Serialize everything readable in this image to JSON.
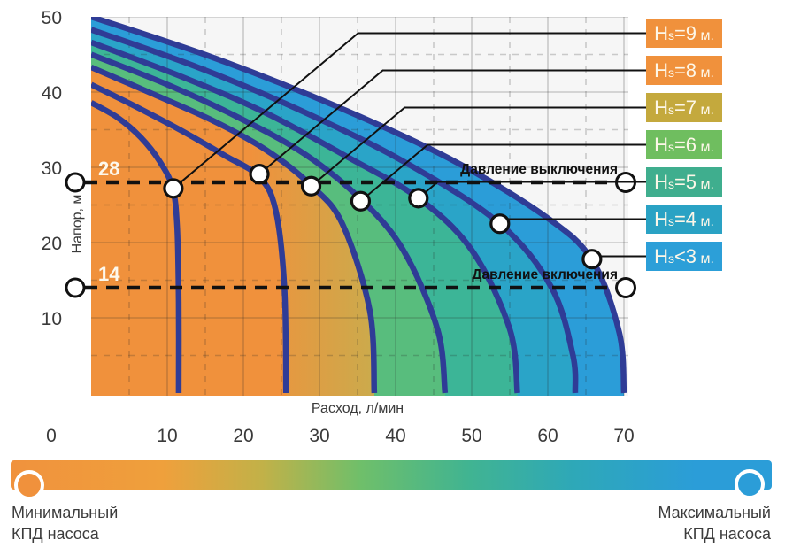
{
  "chart_data": {
    "type": "line",
    "title": "",
    "xlabel": "Расход, л/мин",
    "ylabel": "Напор, м",
    "xlim": [
      0,
      70
    ],
    "ylim": [
      0,
      50
    ],
    "x_ticks": [
      0,
      10,
      20,
      30,
      40,
      50,
      60,
      70
    ],
    "y_ticks": [
      50,
      40,
      30,
      20,
      10
    ],
    "grid": {
      "major_step": 10,
      "minor_step": 5,
      "minor_style": "dashed",
      "major_style": "solid"
    },
    "curve_color": "#2F3C96",
    "series": [
      {
        "name": "Hs=9 м.",
        "label_color": "#F0913C",
        "band_color": "#F0913C",
        "dot": [
          10.8,
          27.2
        ],
        "points": [
          [
            0,
            38.6
          ],
          [
            3.5,
            36.6
          ],
          [
            6.5,
            34.0
          ],
          [
            9.0,
            30.8
          ],
          [
            10.7,
            27.3
          ],
          [
            11.3,
            22.0
          ],
          [
            11.5,
            12.0
          ],
          [
            11.5,
            0
          ]
        ]
      },
      {
        "name": "Hs=8 м.",
        "label_color": "#F0913C",
        "band_color": "#F0913C",
        "dot": [
          22.1,
          29.1
        ],
        "points": [
          [
            0,
            41.0
          ],
          [
            6.0,
            38.0
          ],
          [
            12.0,
            34.8
          ],
          [
            17.5,
            31.6
          ],
          [
            22.0,
            28.8
          ],
          [
            24.2,
            24.5
          ],
          [
            25.4,
            14.0
          ],
          [
            25.6,
            0
          ]
        ]
      },
      {
        "name": "Hs=7 м.",
        "label_color": "#C4A93D",
        "band_color": "gradient:#F0913C,#C9AC4D",
        "dot": [
          28.9,
          27.5
        ],
        "points": [
          [
            0,
            43.3
          ],
          [
            8.0,
            39.8
          ],
          [
            16.0,
            36.2
          ],
          [
            23.0,
            32.3
          ],
          [
            28.9,
            27.6
          ],
          [
            33.0,
            22.5
          ],
          [
            36.6,
            11.0
          ],
          [
            37.2,
            0
          ]
        ]
      },
      {
        "name": "Hs=6 м.",
        "label_color": "#6FBE5F",
        "band_color": "#58BD7D",
        "dot": [
          35.4,
          25.5
        ],
        "points": [
          [
            0,
            45.0
          ],
          [
            10.0,
            41.0
          ],
          [
            19.0,
            36.8
          ],
          [
            28.0,
            31.8
          ],
          [
            35.4,
            25.8
          ],
          [
            41.0,
            19.0
          ],
          [
            45.5,
            8.5
          ],
          [
            46.5,
            0
          ]
        ]
      },
      {
        "name": "Hs=5 м.",
        "label_color": "#3FAE8E",
        "band_color": "#3CB597",
        "dot": [
          43.0,
          25.9
        ],
        "points": [
          [
            0,
            46.6
          ],
          [
            12.0,
            42.0
          ],
          [
            23.0,
            37.2
          ],
          [
            34.0,
            31.2
          ],
          [
            43.0,
            25.9
          ],
          [
            50.0,
            19.0
          ],
          [
            55.0,
            8.5
          ],
          [
            56.0,
            0
          ]
        ]
      },
      {
        "name": "Hs=4 м.",
        "label_color": "#2AA2C4",
        "band_color": "#2AA4C8",
        "dot": [
          53.7,
          22.5
        ],
        "points": [
          [
            0,
            48.3
          ],
          [
            14.0,
            43.3
          ],
          [
            27.0,
            37.8
          ],
          [
            41.0,
            30.8
          ],
          [
            53.7,
            22.5
          ],
          [
            60.5,
            14.0
          ],
          [
            63.3,
            5.0
          ],
          [
            63.6,
            0
          ]
        ]
      },
      {
        "name": "Hs<3 м.",
        "label_color": "#2C9FD8",
        "band_color": "#2B9DD8",
        "dot": [
          65.8,
          17.8
        ],
        "points": [
          [
            0,
            50.0
          ],
          [
            16.0,
            44.6
          ],
          [
            32.0,
            38.2
          ],
          [
            47.0,
            31.2
          ],
          [
            59.5,
            23.6
          ],
          [
            65.8,
            17.7
          ],
          [
            69.4,
            8.0
          ],
          [
            70.0,
            0
          ]
        ]
      }
    ],
    "pressure_lines": [
      {
        "value": 28,
        "value_label": "28",
        "text": "Давление выключения"
      },
      {
        "value": 14,
        "value_label": "14",
        "text": "Давление включения"
      }
    ],
    "efficiency_bar": {
      "gradient": [
        "#F0923D 0%",
        "#EFA03C 20%",
        "#C2B148 33%",
        "#6FBF6A 46%",
        "#41B491 60%",
        "#2EA8B8 74%",
        "#2B9DD8 90%"
      ],
      "min_color": "#F0913C",
      "max_color": "#2B9DD8",
      "left_label_line1": "Минимальный",
      "left_label_line2": "КПД насоса",
      "right_label_line1": "Максимальный",
      "right_label_line2": "КПД насоса"
    }
  }
}
